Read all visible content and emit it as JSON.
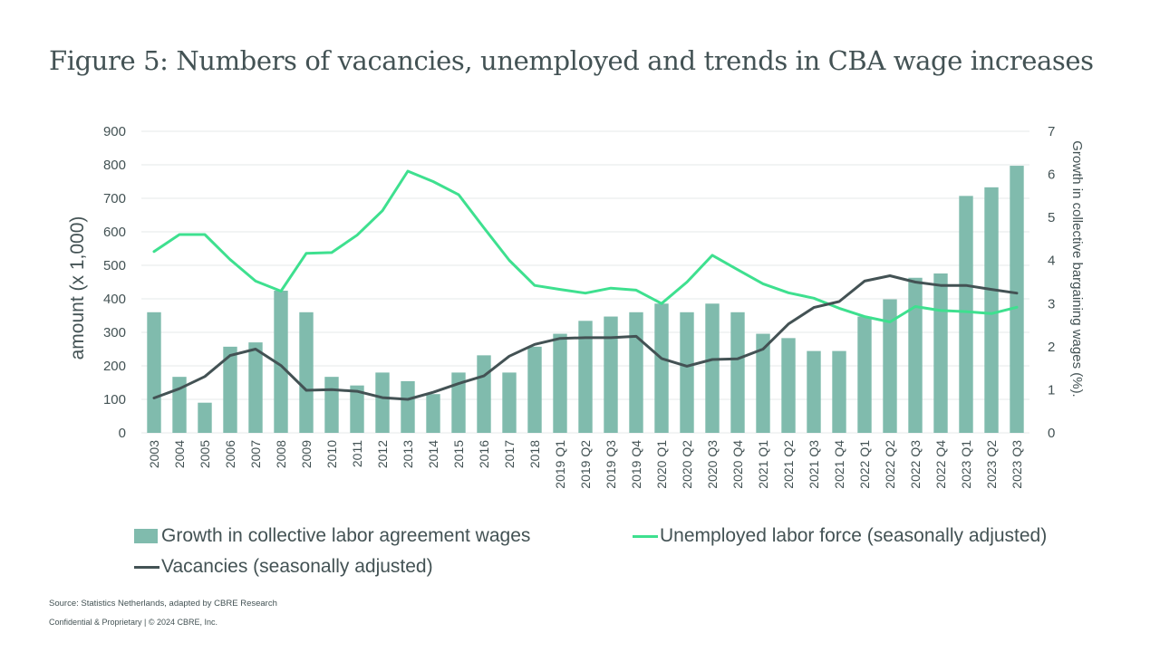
{
  "page": {
    "title": "Figure 5: Numbers of vacancies, unemployed and trends in CBA wage increases",
    "source": "Source: Statistics Netherlands, adapted by CBRE Research",
    "footer": "Confidential & Proprietary | © 2024 CBRE, Inc."
  },
  "colors": {
    "bars": "#80BBAD",
    "unemployed": "#3EE08F",
    "vacancies": "#435254",
    "grid": "#E6E9E9",
    "text": "#435254"
  },
  "chart_data": {
    "type": "bar",
    "categories": [
      "2003",
      "2004",
      "2005",
      "2006",
      "2007",
      "2008",
      "2009",
      "2010",
      "2011",
      "2012",
      "2013",
      "2014",
      "2015",
      "2016",
      "2017",
      "2018",
      "2019 Q1",
      "2019 Q2",
      "2019 Q3",
      "2019 Q4",
      "2020 Q1",
      "2020 Q2",
      "2020 Q3",
      "2020 Q4",
      "2021 Q1",
      "2021 Q2",
      "2021 Q3",
      "2021 Q4",
      "2022 Q1",
      "2022 Q2",
      "2022 Q3",
      "2022 Q4",
      "2023 Q1",
      "2023 Q2",
      "2023 Q3"
    ],
    "ylabel": "amount (x 1,000)",
    "y2label": "Growth in collective bargaining wages (%).",
    "ylim": [
      0,
      900
    ],
    "y2lim": [
      0,
      7
    ],
    "yticks": [
      "0",
      "100",
      "200",
      "300",
      "400",
      "500",
      "600",
      "700",
      "800",
      "900"
    ],
    "y2ticks": [
      "0",
      "1",
      "2",
      "3",
      "4",
      "5",
      "6",
      "7"
    ],
    "grid": true,
    "legend_position": "bottom",
    "series": [
      {
        "name": "Growth in collective labor agreement wages",
        "type": "bar",
        "axis": "right",
        "values": [
          2.8,
          1.3,
          0.7,
          2.0,
          2.1,
          3.3,
          2.8,
          1.3,
          1.1,
          1.4,
          1.2,
          0.9,
          1.4,
          1.8,
          1.4,
          2.0,
          2.3,
          2.6,
          2.7,
          2.8,
          3.0,
          2.8,
          3.0,
          2.8,
          2.3,
          2.2,
          1.9,
          1.9,
          2.7,
          3.1,
          3.6,
          3.7,
          5.5,
          5.7,
          6.2
        ]
      },
      {
        "name": "Unemployed labor force (seasonally adjusted)",
        "type": "line",
        "axis": "left",
        "values": [
          541,
          592,
          592,
          517,
          453,
          423,
          536,
          538,
          590,
          663,
          781,
          750,
          711,
          612,
          515,
          440,
          428,
          417,
          432,
          426,
          386,
          450,
          530,
          487,
          445,
          418,
          402,
          372,
          347,
          331,
          377,
          365,
          362,
          356,
          375
        ]
      },
      {
        "name": "Vacancies (seasonally adjusted)",
        "type": "line",
        "axis": "left",
        "values": [
          104,
          132,
          168,
          231,
          250,
          201,
          127,
          129,
          124,
          105,
          100,
          121,
          147,
          170,
          229,
          264,
          282,
          284,
          284,
          288,
          222,
          199,
          219,
          221,
          250,
          325,
          374,
          392,
          453,
          469,
          450,
          440,
          440,
          428,
          417
        ]
      }
    ]
  }
}
